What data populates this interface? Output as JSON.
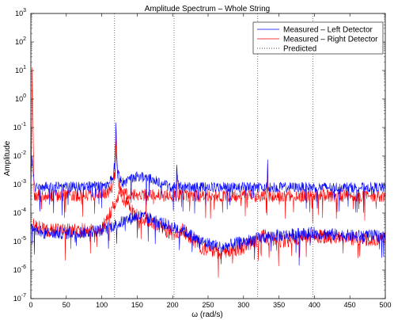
{
  "chart_data": {
    "type": "line",
    "title": "Amplitude Spectrum – Whole String",
    "xlabel": "ω (rad/s)",
    "ylabel": "Amplitude",
    "xlim": [
      0,
      500
    ],
    "ylim_log10": [
      -7,
      3
    ],
    "yscale": "log",
    "x_ticks": [
      0,
      50,
      100,
      150,
      200,
      250,
      300,
      350,
      400,
      450,
      500
    ],
    "x_tick_labels": [
      "0",
      "50",
      "100",
      "150",
      "200",
      "250",
      "300",
      "350",
      "400",
      "450",
      "500"
    ],
    "y_tick_exponents": [
      -7,
      -6,
      -5,
      -4,
      -3,
      -2,
      -1,
      0,
      1,
      2,
      3
    ],
    "y_tick_base": "10",
    "predicted_frequencies": [
      118,
      202,
      320,
      398
    ],
    "legend_position": "top-right",
    "series": [
      {
        "name": "Measured – Left Detector",
        "color": "#0000ff",
        "base_log10": [
          [
            0,
            -2.8
          ],
          [
            2,
            -2.0
          ],
          [
            5,
            -3.2
          ],
          [
            20,
            -3.2
          ],
          [
            60,
            -3.25
          ],
          [
            100,
            -3.3
          ],
          [
            120,
            -3.1
          ],
          [
            150,
            -2.7
          ],
          [
            170,
            -2.8
          ],
          [
            190,
            -3.0
          ],
          [
            200,
            -3.2
          ],
          [
            215,
            -3.3
          ],
          [
            250,
            -3.5
          ],
          [
            300,
            -3.6
          ],
          [
            340,
            -3.65
          ],
          [
            400,
            -3.85
          ],
          [
            450,
            -3.9
          ],
          [
            500,
            -3.95
          ]
        ],
        "noise": 0.18,
        "peaks": [
          {
            "x": 120,
            "log10": -0.8,
            "width": 1.2
          },
          {
            "x": 206,
            "log10": -2.3,
            "width": 0.8
          },
          {
            "x": 240,
            "log10": -3.0,
            "width": 0.5
          },
          {
            "x": 334,
            "log10": -2.3,
            "width": 0.7
          },
          {
            "x": 412,
            "log10": -3.0,
            "width": 0.7
          }
        ]
      },
      {
        "name": "Measured – Right Detector",
        "color": "#ff0000",
        "base_log10": [
          [
            0,
            -3.8
          ],
          [
            2,
            0.9
          ],
          [
            5,
            -4.0
          ],
          [
            20,
            -4.0
          ],
          [
            60,
            -4.2
          ],
          [
            100,
            -4.3
          ],
          [
            120,
            -3.4
          ],
          [
            150,
            -4.0
          ],
          [
            170,
            -4.3
          ],
          [
            190,
            -4.5
          ],
          [
            200,
            -4.3
          ],
          [
            215,
            -3.8
          ],
          [
            250,
            -3.9
          ],
          [
            300,
            -4.0
          ],
          [
            340,
            -4.1
          ],
          [
            400,
            -4.2
          ],
          [
            450,
            -4.25
          ],
          [
            500,
            -4.3
          ]
        ],
        "noise": 0.22,
        "peaks": [
          {
            "x": 120,
            "log10": -1.2,
            "width": 1.2
          },
          {
            "x": 206,
            "log10": -2.2,
            "width": 0.8
          },
          {
            "x": 334,
            "log10": -2.3,
            "width": 0.7
          },
          {
            "x": 412,
            "log10": -3.2,
            "width": 0.7
          }
        ]
      },
      {
        "name": "Measured – Right Detector (lower trace)",
        "color": "#ff0000",
        "legend_hidden": true,
        "base_log10": [
          [
            0,
            -4.4
          ],
          [
            20,
            -4.6
          ],
          [
            60,
            -4.6
          ],
          [
            100,
            -4.6
          ],
          [
            125,
            -3.3
          ],
          [
            150,
            -4.1
          ],
          [
            170,
            -4.3
          ],
          [
            190,
            -4.6
          ],
          [
            200,
            -4.7
          ],
          [
            215,
            -4.6
          ],
          [
            240,
            -5.2
          ],
          [
            270,
            -5.4
          ],
          [
            300,
            -5.2
          ],
          [
            330,
            -4.8
          ],
          [
            350,
            -5.0
          ],
          [
            400,
            -4.8
          ],
          [
            450,
            -4.9
          ],
          [
            500,
            -4.9
          ]
        ],
        "noise": 0.25,
        "peaks": []
      },
      {
        "name": "Measured – Left Detector (lower trace)",
        "color": "#0000ff",
        "legend_hidden": true,
        "base_log10": [
          [
            0,
            -4.5
          ],
          [
            20,
            -4.7
          ],
          [
            60,
            -4.7
          ],
          [
            100,
            -4.6
          ],
          [
            150,
            -4.1
          ],
          [
            170,
            -4.2
          ],
          [
            200,
            -4.5
          ],
          [
            215,
            -4.6
          ],
          [
            240,
            -5.0
          ],
          [
            270,
            -5.2
          ],
          [
            300,
            -5.0
          ],
          [
            340,
            -4.8
          ],
          [
            400,
            -4.7
          ],
          [
            450,
            -4.8
          ],
          [
            500,
            -4.8
          ]
        ],
        "noise": 0.22,
        "peaks": []
      }
    ],
    "legend": [
      {
        "label": "Measured – Left Detector",
        "color": "#0000ff",
        "style": "solid"
      },
      {
        "label": "Measured – Right Detector",
        "color": "#ff0000",
        "style": "solid"
      },
      {
        "label": "Predicted",
        "color": "#000000",
        "style": "dotted"
      }
    ]
  }
}
